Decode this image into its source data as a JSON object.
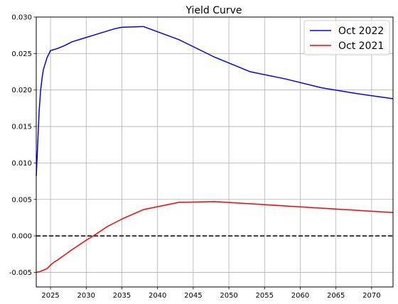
{
  "chart_data": {
    "type": "line",
    "title": "Yield Curve",
    "xlabel": "",
    "ylabel": "",
    "xlim": [
      2023,
      2073
    ],
    "ylim": [
      -0.007,
      0.03
    ],
    "xticks": [
      2025,
      2030,
      2035,
      2040,
      2045,
      2050,
      2055,
      2060,
      2065,
      2070
    ],
    "yticks": [
      "-0.005",
      "0.000",
      "0.005",
      "0.010",
      "0.015",
      "0.020",
      "0.025",
      "0.030"
    ],
    "grid": true,
    "legend_position": "top-right",
    "hline": {
      "y": 0,
      "style": "dashed",
      "color": "#000000"
    },
    "series": [
      {
        "name": "Oct 2022",
        "color": "#0000ff",
        "x": [
          2023.0,
          2023.2,
          2023.4,
          2023.6,
          2023.8,
          2024.0,
          2024.5,
          2025.0,
          2026.0,
          2027.0,
          2028.0,
          2030.0,
          2032.0,
          2034.0,
          2035.0,
          2038.0,
          2043.0,
          2048.0,
          2053.0,
          2058.0,
          2063.0,
          2068.0,
          2073.0
        ],
        "y": [
          0.0082,
          0.0125,
          0.017,
          0.0198,
          0.0215,
          0.0228,
          0.0244,
          0.0254,
          0.0257,
          0.0261,
          0.0266,
          0.0272,
          0.0278,
          0.0284,
          0.0286,
          0.0287,
          0.0269,
          0.0245,
          0.0225,
          0.0215,
          0.0203,
          0.0195,
          0.0188
        ]
      },
      {
        "name": "Oct 2021",
        "color": "#ff0000",
        "x": [
          2023.0,
          2023.5,
          2024.0,
          2024.5,
          2025.0,
          2025.5,
          2026.0,
          2027.0,
          2028.0,
          2030.0,
          2031.0,
          2033.0,
          2035.0,
          2038.0,
          2043.0,
          2048.0,
          2053.0,
          2058.0,
          2063.0,
          2068.0,
          2073.0
        ],
        "y": [
          -0.005,
          -0.0049,
          -0.0047,
          -0.0045,
          -0.004,
          -0.0036,
          -0.0033,
          -0.0026,
          -0.0019,
          -0.0006,
          0.0,
          0.0013,
          0.0023,
          0.0036,
          0.0046,
          0.0047,
          0.0044,
          0.0041,
          0.0038,
          0.0035,
          0.0032
        ]
      }
    ]
  }
}
